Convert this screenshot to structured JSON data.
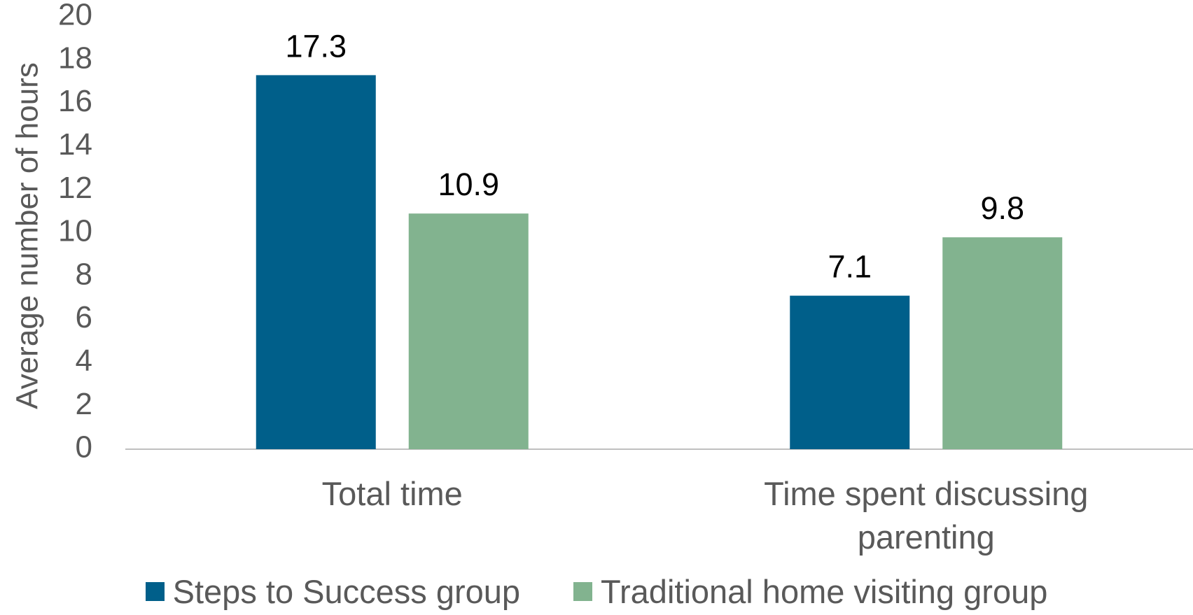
{
  "chart_data": {
    "type": "bar",
    "y_label": "Average number of hours",
    "categories": [
      "Total time",
      "Time spent discussing parenting"
    ],
    "series": [
      {
        "name": "Steps to Success group",
        "color": "#005f8a",
        "values": [
          17.3,
          7.1
        ]
      },
      {
        "name": "Traditional home visiting group",
        "color": "#82b38f",
        "values": [
          10.9,
          9.8
        ]
      }
    ],
    "ylim": [
      0,
      20
    ],
    "yticks": [
      0,
      2,
      4,
      6,
      8,
      10,
      12,
      14,
      16,
      18,
      20
    ],
    "legend": "bottom"
  }
}
